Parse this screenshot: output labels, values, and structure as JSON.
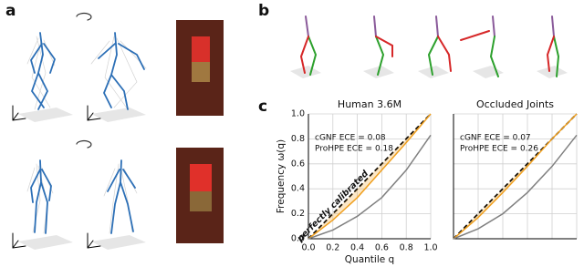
{
  "panel_labels": [
    "a",
    "b",
    "c"
  ],
  "chart_data": [
    {
      "type": "line",
      "title": "Human 3.6M",
      "xlabel": "Quantile q",
      "ylabel": "Frequency ω(q)",
      "annotations": [
        "cGNF ECE = 0.08",
        "ProHPE ECE = 0.18"
      ],
      "x": [
        0,
        0.2,
        0.4,
        0.6,
        0.8,
        1.0
      ],
      "series": [
        {
          "name": "perfectly calibrated",
          "color": "#000000",
          "dashed": true,
          "values": [
            0,
            0.2,
            0.4,
            0.6,
            0.8,
            1.0
          ]
        },
        {
          "color": "#f0a020",
          "fill_to_diagonal": true,
          "values": [
            0,
            0.15,
            0.33,
            0.55,
            0.77,
            1.0
          ]
        },
        {
          "color": "#808080",
          "values": [
            0,
            0.07,
            0.18,
            0.33,
            0.55,
            0.83
          ]
        }
      ],
      "xlim": [
        0,
        1
      ],
      "ylim": [
        0,
        1
      ],
      "xticks": [
        {
          "value": 0,
          "label": "0.0"
        },
        {
          "value": 0.2,
          "label": "0.2"
        },
        {
          "value": 0.4,
          "label": "0.4"
        },
        {
          "value": 0.6,
          "label": "0.6"
        },
        {
          "value": 0.8,
          "label": "0.8"
        },
        {
          "value": 1,
          "label": "1.0"
        }
      ],
      "yticks": [
        {
          "value": 0,
          "label": "0.0"
        },
        {
          "value": 0.2,
          "label": "0.2"
        },
        {
          "value": 0.4,
          "label": "0.4"
        },
        {
          "value": 0.6,
          "label": "0.6"
        },
        {
          "value": 0.8,
          "label": "0.8"
        },
        {
          "value": 1,
          "label": "1.0"
        }
      ],
      "grid": true,
      "tick_labels": true
    },
    {
      "type": "line",
      "title": "Occluded Joints",
      "annotations": [
        "cGNF ECE = 0.07",
        "ProHPE ECE = 0.26"
      ],
      "x": [
        0,
        0.2,
        0.4,
        0.6,
        0.8,
        1.0
      ],
      "series": [
        {
          "color": "#000000",
          "dashed": true,
          "values": [
            0,
            0.2,
            0.4,
            0.6,
            0.8,
            1.0
          ]
        },
        {
          "color": "#f0a020",
          "fill_to_diagonal": true,
          "values": [
            0,
            0.17,
            0.37,
            0.58,
            0.8,
            1.0
          ]
        },
        {
          "color": "#808080",
          "values": [
            0,
            0.08,
            0.2,
            0.37,
            0.58,
            0.83
          ]
        }
      ],
      "xlim": [
        0,
        1
      ],
      "ylim": [
        0,
        1
      ],
      "xticks": [
        0,
        0.2,
        0.4,
        0.6,
        0.8,
        1
      ],
      "yticks": [
        0,
        0.2,
        0.4,
        0.6,
        0.8,
        1
      ],
      "grid": true,
      "tick_labels": false
    }
  ]
}
